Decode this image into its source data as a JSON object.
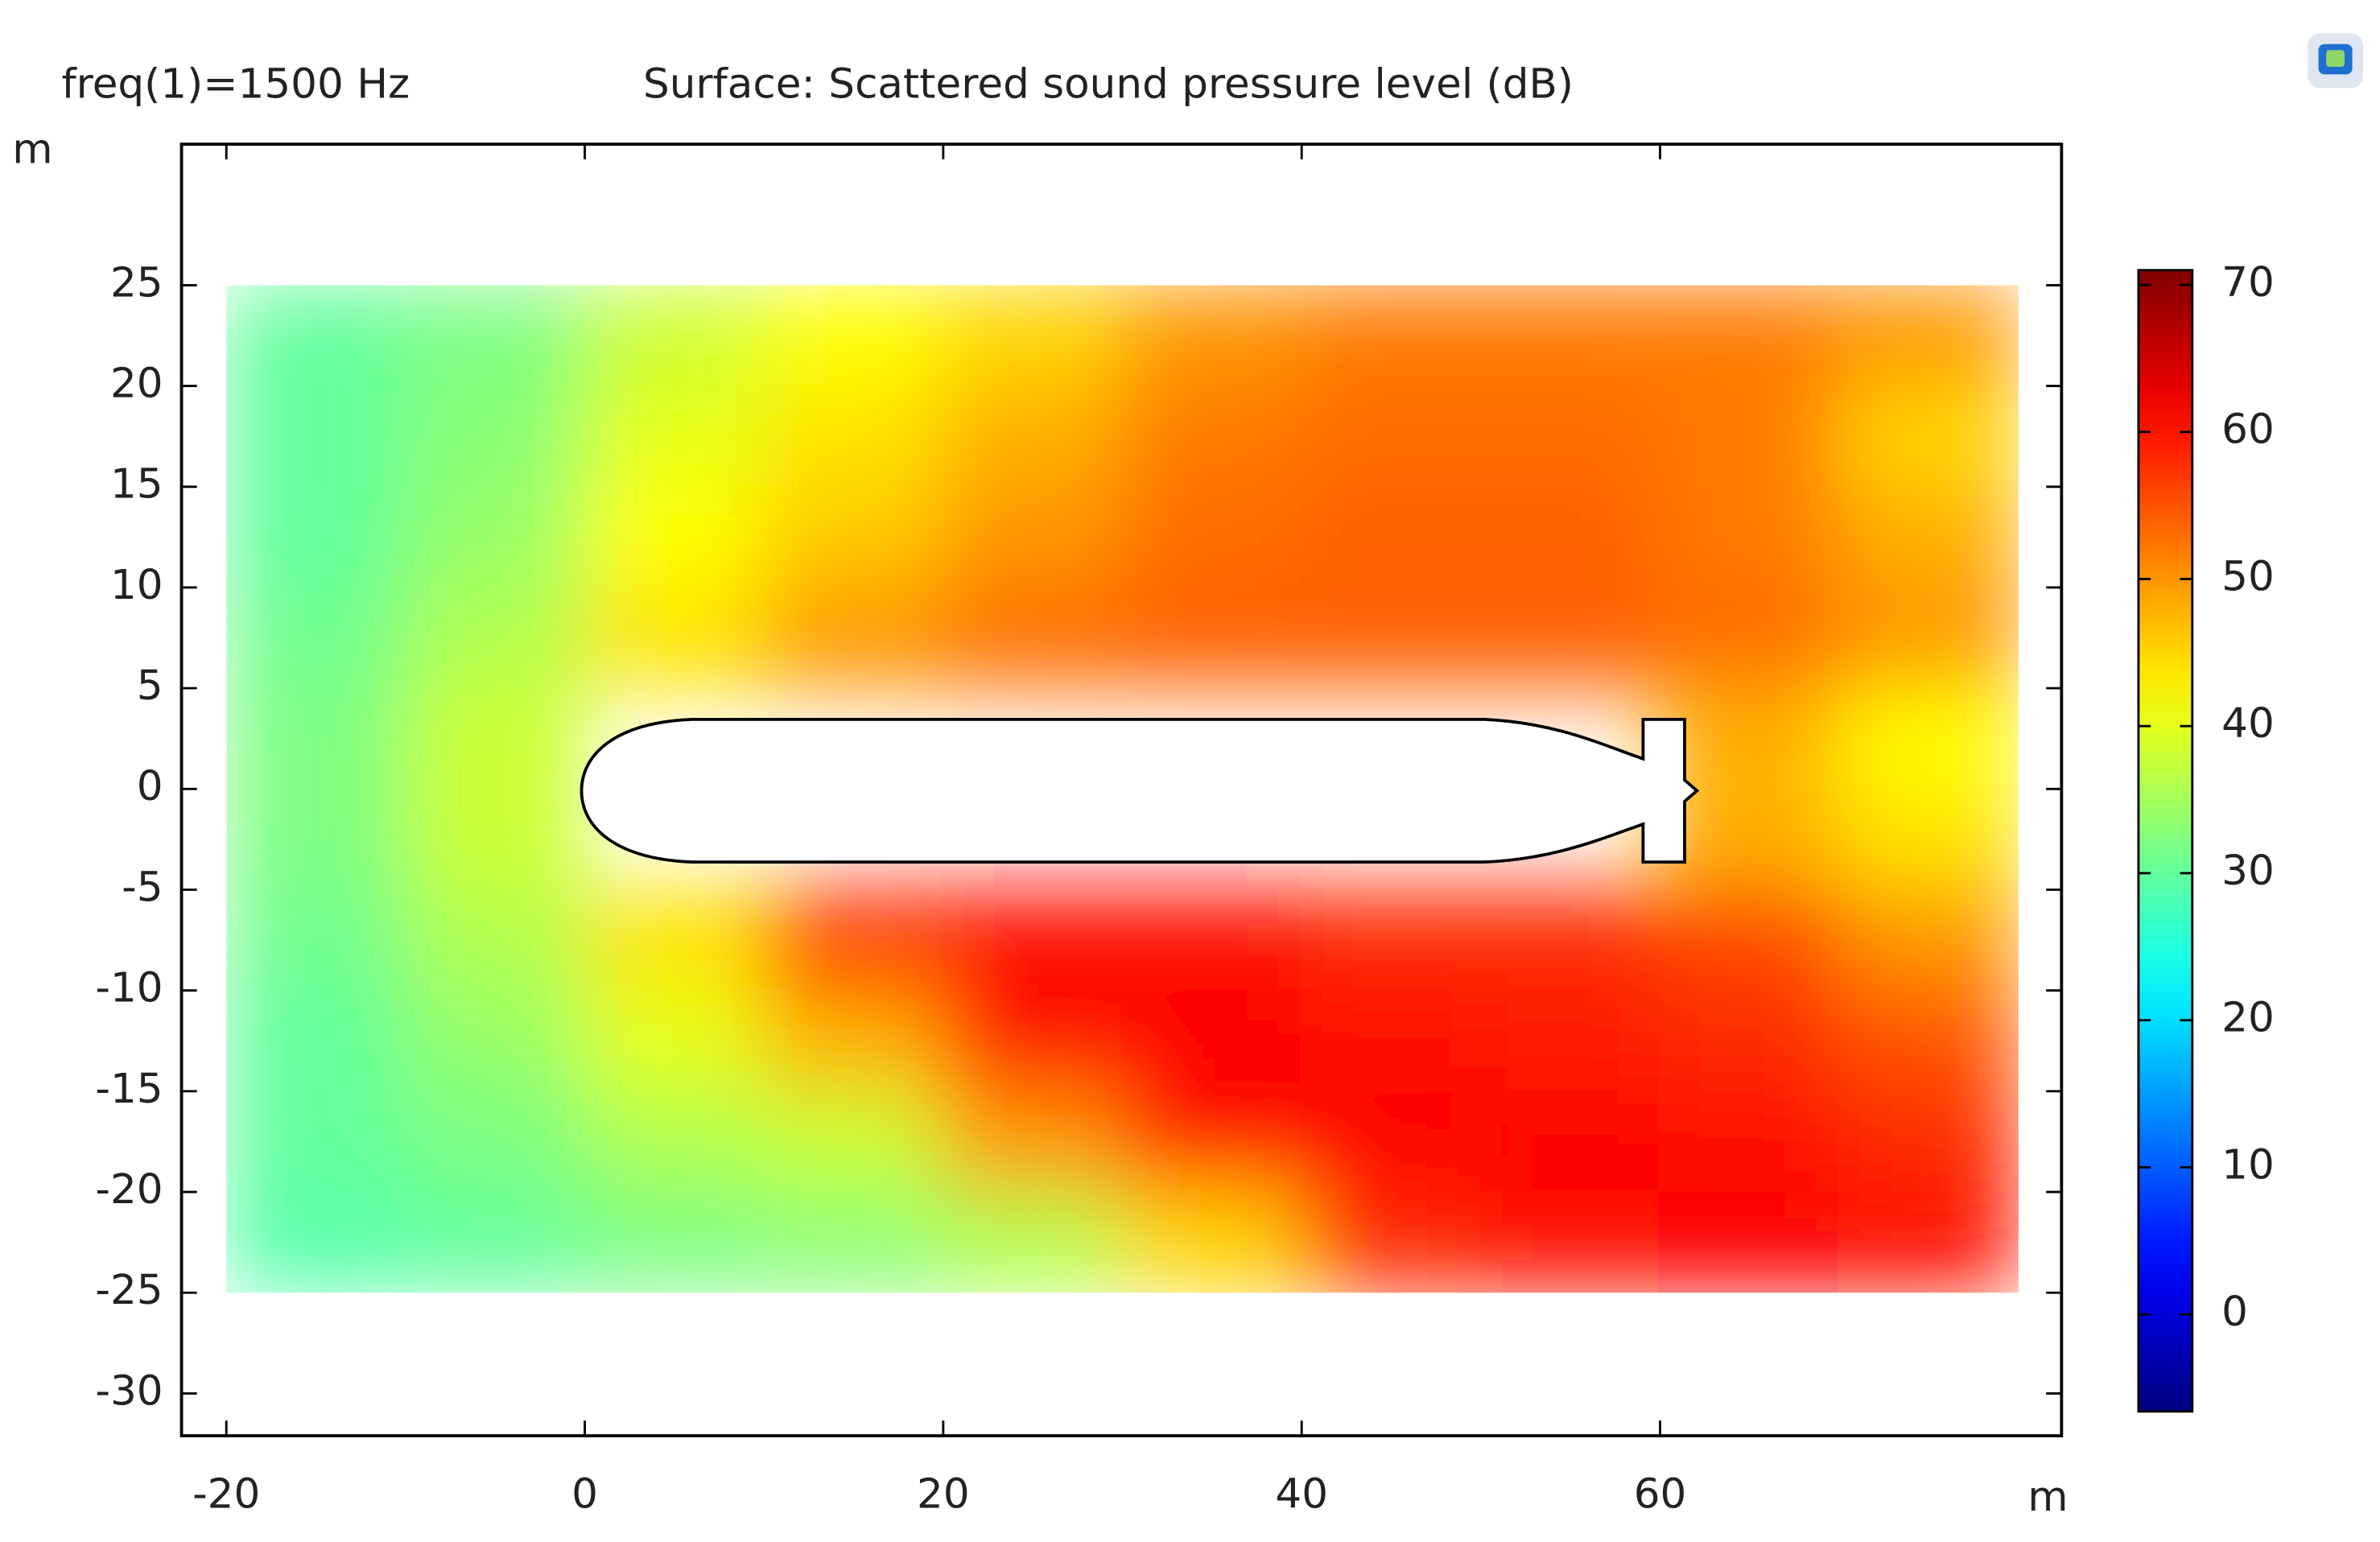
{
  "chart_data": {
    "type": "heatmap",
    "title": "Surface: Scattered sound pressure level (dB)",
    "subtitle": "freq(1)=1500 Hz",
    "x_label": "m",
    "y_label": "m",
    "colormap": "jet",
    "x": [
      -15,
      -5,
      5,
      15,
      25,
      35,
      45,
      55,
      65,
      75
    ],
    "y": [
      22.5,
      17.5,
      12.5,
      7.5,
      2.5,
      -2.5,
      -7.5,
      -12.5,
      -17.5,
      -22.5
    ],
    "values": [
      [
        30,
        32,
        38,
        42,
        45,
        50,
        52,
        52,
        52,
        50
      ],
      [
        30,
        33,
        40,
        44,
        48,
        52,
        53,
        53,
        52,
        45
      ],
      [
        30,
        34,
        42,
        46,
        50,
        53,
        54,
        54,
        52,
        48
      ],
      [
        31,
        36,
        44,
        50,
        53,
        54,
        54,
        54,
        53,
        50
      ],
      [
        32,
        38,
        null,
        null,
        null,
        null,
        null,
        null,
        48,
        42
      ],
      [
        32,
        38,
        null,
        null,
        null,
        null,
        null,
        null,
        48,
        44
      ],
      [
        31,
        36,
        44,
        58,
        60,
        60,
        58,
        58,
        56,
        50
      ],
      [
        30,
        34,
        40,
        48,
        60,
        61,
        60,
        59,
        58,
        55
      ],
      [
        30,
        32,
        36,
        38,
        50,
        60,
        61,
        61,
        60,
        58
      ],
      [
        29,
        30,
        32,
        33,
        36,
        45,
        58,
        60,
        61,
        60
      ]
    ],
    "xlim": [
      -22.5,
      82.4
    ],
    "ylim": [
      -32.1,
      32.0
    ],
    "xticks": [
      -20,
      0,
      20,
      40,
      60
    ],
    "yticks": [
      25,
      20,
      15,
      10,
      5,
      0,
      -5,
      -10,
      -15,
      -20,
      -25,
      -30
    ],
    "clim": [
      -6.6,
      71.0
    ],
    "cticks": [
      70,
      60,
      50,
      40,
      30,
      20,
      10,
      0
    ]
  }
}
